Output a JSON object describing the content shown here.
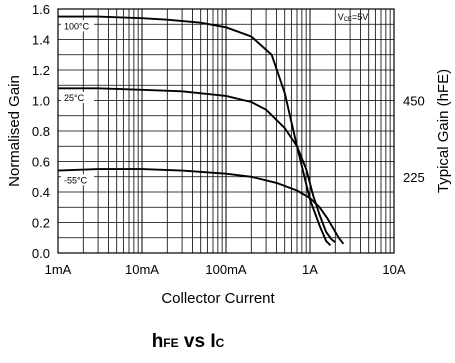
{
  "chart_data": {
    "type": "line",
    "title_main": "h",
    "title_sub": "FE",
    "title_vs": " vs I",
    "title_c": "C",
    "xlabel": "Collector Current",
    "ylabel": "Normalised Gain",
    "y2label": "Typical Gain  (hFE)",
    "x_scale": "log",
    "xlim_A": [
      0.001,
      10
    ],
    "ylim": [
      0,
      1.6
    ],
    "x_ticks": [
      {
        "value": 0.001,
        "label": "1mA"
      },
      {
        "value": 0.01,
        "label": "10mA"
      },
      {
        "value": 0.1,
        "label": "100mA"
      },
      {
        "value": 1,
        "label": "1A"
      },
      {
        "value": 10,
        "label": "10A"
      }
    ],
    "y_ticks": [
      {
        "value": 0.0,
        "label": "0.0"
      },
      {
        "value": 0.2,
        "label": "0.2"
      },
      {
        "value": 0.4,
        "label": "0.4"
      },
      {
        "value": 0.6,
        "label": "0.6"
      },
      {
        "value": 0.8,
        "label": "0.8"
      },
      {
        "value": 1.0,
        "label": "1.0"
      },
      {
        "value": 1.2,
        "label": "1.2"
      },
      {
        "value": 1.4,
        "label": "1.4"
      },
      {
        "value": 1.6,
        "label": "1.6"
      }
    ],
    "y2_ticks": [
      {
        "value": 1.0,
        "label": "450"
      },
      {
        "value": 0.5,
        "label": "225"
      }
    ],
    "condition_main": "V",
    "condition_sub": "CE",
    "condition_rest": "=5V",
    "grid": true,
    "series": [
      {
        "name": "100°C",
        "x": [
          0.001,
          0.003,
          0.01,
          0.02,
          0.05,
          0.1,
          0.2,
          0.35,
          0.5,
          0.7,
          1.0,
          1.3,
          1.55,
          1.75
        ],
        "y": [
          1.55,
          1.55,
          1.54,
          1.53,
          1.51,
          1.48,
          1.42,
          1.3,
          1.05,
          0.7,
          0.35,
          0.18,
          0.08,
          0.05
        ]
      },
      {
        "name": "25°C",
        "x": [
          0.001,
          0.003,
          0.01,
          0.03,
          0.1,
          0.2,
          0.3,
          0.5,
          0.7,
          0.9,
          1.1,
          1.3,
          1.55,
          1.8,
          2.0
        ],
        "y": [
          1.08,
          1.08,
          1.07,
          1.06,
          1.03,
          0.99,
          0.94,
          0.82,
          0.7,
          0.55,
          0.37,
          0.25,
          0.14,
          0.09,
          0.07
        ]
      },
      {
        "name": "-55°C",
        "x": [
          0.001,
          0.003,
          0.01,
          0.03,
          0.1,
          0.2,
          0.4,
          0.7,
          1.0,
          1.3,
          1.6,
          1.9,
          2.2,
          2.5
        ],
        "y": [
          0.54,
          0.55,
          0.55,
          0.54,
          0.52,
          0.5,
          0.46,
          0.41,
          0.36,
          0.3,
          0.23,
          0.16,
          0.1,
          0.06
        ]
      }
    ],
    "series_label_positions": [
      {
        "name": "100°C",
        "y": 1.48
      },
      {
        "name": "25°C",
        "y": 1.01
      },
      {
        "name": "-55°C",
        "y": 0.47
      }
    ]
  }
}
